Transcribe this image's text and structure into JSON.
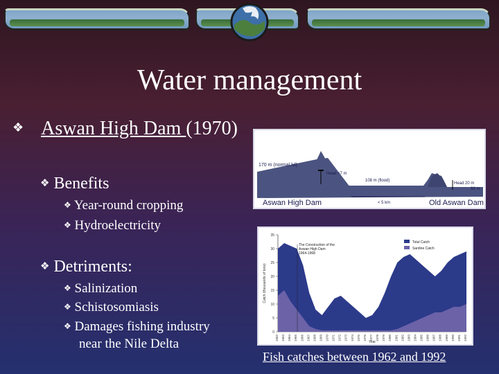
{
  "slide": {
    "title": "Water management"
  },
  "bullets": {
    "main_link": "Aswan High Dam ",
    "main_year": "(1970)",
    "benefits_heading": "Benefits",
    "benefits": [
      "Year-round cropping",
      "Hydroelectricity"
    ],
    "detriments_heading": "Detriments:",
    "detriments": [
      "Salinization",
      "Schistosomiasis",
      "Damages fishing industry"
    ],
    "detriments_cont": "near the Nile Delta"
  },
  "dam_diagram": {
    "labels": {
      "top": "170 m (normal lvl)",
      "head": "Head <7 m",
      "flood": "108 m (flood)",
      "head20": "Head 20 m",
      "h88": "88 m",
      "high_dam": "Aswan High Dam",
      "dist": "< 5 km",
      "old_dam": "Old Aswan Dam"
    }
  },
  "chart_data": {
    "type": "area",
    "title": "",
    "ylabel": "Catch (thousands of tons)",
    "xlabel": "Year",
    "ylim": [
      0,
      35
    ],
    "yticks": [
      0,
      5,
      10,
      15,
      20,
      25,
      30,
      35
    ],
    "annotation": "The Construction of the Aswan High Dam 1964-1968",
    "series": [
      {
        "name": "Total Catch",
        "color": "#2c3a8a",
        "values": [
          30,
          32,
          31,
          30,
          24,
          14,
          8,
          6,
          9,
          12,
          13,
          11,
          9,
          7,
          5,
          6,
          9,
          14,
          20,
          25,
          27,
          28,
          26,
          24,
          22,
          20,
          22,
          25,
          27,
          28,
          29
        ]
      },
      {
        "name": "Sardine Catch",
        "color": "#6b62a8",
        "values": [
          13,
          15,
          11,
          8,
          5,
          2,
          1,
          0.5,
          0.5,
          0.5,
          0.5,
          0.5,
          0.5,
          0.5,
          0.5,
          0.5,
          0.5,
          0.5,
          0.5,
          1,
          2,
          3,
          4,
          5,
          6,
          7,
          7,
          8,
          9,
          9,
          10
        ]
      }
    ],
    "x": [
      "1962",
      "1963",
      "1964",
      "1965",
      "1966",
      "1967",
      "1968",
      "1969",
      "1970",
      "1971",
      "1972",
      "1973",
      "1974",
      "1975",
      "1976",
      "1977",
      "1978",
      "1979",
      "1980",
      "1981",
      "1982",
      "1983",
      "1984",
      "1985",
      "1986",
      "1987",
      "1988",
      "1989",
      "1990",
      "1991",
      "1992"
    ],
    "legend_position": "top-right"
  },
  "caption": "Fish catches between 1962 and 1992",
  "colors": {
    "banner_sky": "#7ea6c8",
    "banner_grass": "#4a7e44",
    "dam_fill": "#4b5480",
    "dam_label": "#1a1a50"
  }
}
